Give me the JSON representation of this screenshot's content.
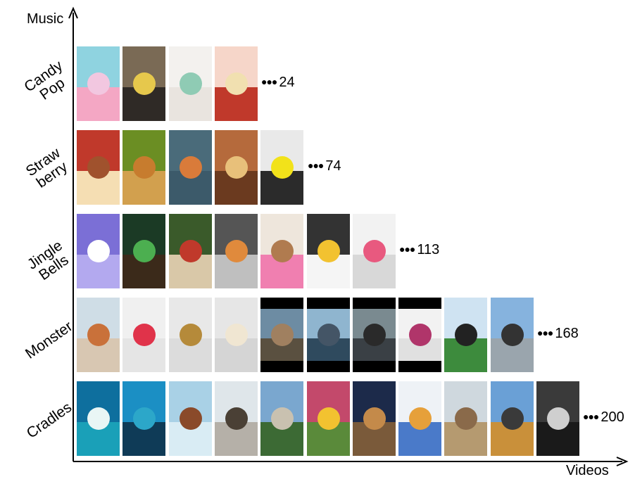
{
  "axes": {
    "y_title": "Music",
    "x_title": "Videos"
  },
  "rows": [
    {
      "label": "Candy\nPop",
      "count": "24",
      "thumbs": [
        {
          "name": "candy-hand-cookies",
          "sky": "#8fd3e0",
          "ground": "#f4a7c4",
          "obj": "#f2c7e0"
        },
        {
          "name": "candy-pan-pouring",
          "sky": "#7a6a55",
          "ground": "#2f2a26",
          "obj": "#e6c84c"
        },
        {
          "name": "candy-jars",
          "sky": "#f3f1ee",
          "ground": "#e9e4df",
          "obj": "#8fcbb4"
        },
        {
          "name": "candy-strawberry-plate",
          "sky": "#f6d6c9",
          "ground": "#c0392b",
          "obj": "#f1e0b0"
        }
      ]
    },
    {
      "label": "Straw\nberry",
      "count": "74",
      "thumbs": [
        {
          "name": "strawberry-waffle-cake",
          "sky": "#c0392b",
          "ground": "#f5deb3",
          "obj": "#a0522d"
        },
        {
          "name": "strawberry-casserole",
          "sky": "#6b8e23",
          "ground": "#d2a04e",
          "obj": "#c77c2e"
        },
        {
          "name": "strawberry-pie-crust",
          "sky": "#4a6b7a",
          "ground": "#3c5a6a",
          "obj": "#d97b3a"
        },
        {
          "name": "strawberry-donut-balls",
          "sky": "#b56a3c",
          "ground": "#6b3a1f",
          "obj": "#e8c07a"
        },
        {
          "name": "strawberry-yellow-pan",
          "sky": "#e9e9e9",
          "ground": "#2b2b2b",
          "obj": "#f2e21a"
        }
      ]
    },
    {
      "label": "Jingle\nBells",
      "count": "113",
      "thumbs": [
        {
          "name": "jingle-snowflake-craft",
          "sky": "#7b6fd6",
          "ground": "#b3a9ef",
          "obj": "#ffffff"
        },
        {
          "name": "jingle-cone-trees",
          "sky": "#1b3a25",
          "ground": "#3b2a1a",
          "obj": "#4caf50"
        },
        {
          "name": "jingle-christmas-tree-dogs",
          "sky": "#3a5a2a",
          "ground": "#d9c8a8",
          "obj": "#c0392b"
        },
        {
          "name": "jingle-cake-hand",
          "sky": "#555555",
          "ground": "#bfbfbf",
          "obj": "#e08a3c"
        },
        {
          "name": "jingle-gingerbread-house",
          "sky": "#eee6dc",
          "ground": "#f07fb0",
          "obj": "#b07b4f"
        },
        {
          "name": "jingle-tree-cake",
          "sky": "#333333",
          "ground": "#f5f5f5",
          "obj": "#f2c230"
        },
        {
          "name": "jingle-pink-ball",
          "sky": "#f2f2f2",
          "ground": "#d8d8d8",
          "obj": "#e8597f"
        }
      ]
    },
    {
      "label": "Monster",
      "count": "168",
      "thumbs": [
        {
          "name": "monster-plant-pot",
          "sky": "#cfdde6",
          "ground": "#d8c7b2",
          "obj": "#c9713a"
        },
        {
          "name": "monster-red-candle",
          "sky": "#f0f0f0",
          "ground": "#e5e5e5",
          "obj": "#e0334a"
        },
        {
          "name": "monster-bell",
          "sky": "#e8e8e8",
          "ground": "#dcdcdc",
          "obj": "#b58a3a"
        },
        {
          "name": "monster-bottle-knife",
          "sky": "#e6e6e6",
          "ground": "#d5d5d5",
          "obj": "#f0e6d2"
        },
        {
          "name": "monster-creature-rock",
          "sky": "#6d8ca3",
          "ground": "#5a5040",
          "obj": "#a08060",
          "bars": true
        },
        {
          "name": "monster-robot-sea",
          "sky": "#8fb5cf",
          "ground": "#2f4a5e",
          "obj": "#445566",
          "bars": true
        },
        {
          "name": "monster-dark-beast",
          "sky": "#7a8a90",
          "ground": "#3a4045",
          "obj": "#2a2a2a",
          "bars": true
        },
        {
          "name": "monster-pink-splash",
          "sky": "#f2f2f2",
          "ground": "#e0e0e0",
          "obj": "#b0356a",
          "bars": true
        },
        {
          "name": "monster-soccer-field",
          "sky": "#cfe3f2",
          "ground": "#3d8b3d",
          "obj": "#222222"
        },
        {
          "name": "monster-dock-jump",
          "sky": "#86b3de",
          "ground": "#9aa5ad",
          "obj": "#333333"
        }
      ]
    },
    {
      "label": "Cradles",
      "count": "200",
      "thumbs": [
        {
          "name": "cradles-wave",
          "sky": "#0e6f9e",
          "ground": "#1aa0b8",
          "obj": "#e9f6f5"
        },
        {
          "name": "cradles-ocean",
          "sky": "#1b8fc4",
          "ground": "#0f3b57",
          "obj": "#2ca7c9"
        },
        {
          "name": "cradles-ice-rock",
          "sky": "#a9d1e6",
          "ground": "#d9ecf4",
          "obj": "#8a4a2a"
        },
        {
          "name": "cradles-eiffel-tower",
          "sky": "#dfe6ea",
          "ground": "#b5b0a8",
          "obj": "#4a4035"
        },
        {
          "name": "cradles-valley",
          "sky": "#7aa7cf",
          "ground": "#3c6a34",
          "obj": "#c9c1b0"
        },
        {
          "name": "cradles-colorful-balls",
          "sky": "#c3496b",
          "ground": "#5a8a3a",
          "obj": "#f2c230"
        },
        {
          "name": "cradles-cat-tunnel",
          "sky": "#1c2a4a",
          "ground": "#7a5a3a",
          "obj": "#c48a4a"
        },
        {
          "name": "cradles-ball-pit",
          "sky": "#eef2f6",
          "ground": "#4a7ac9",
          "obj": "#e6a03a"
        },
        {
          "name": "cradles-colosseum",
          "sky": "#cfd8de",
          "ground": "#b59a70",
          "obj": "#8a6a4a"
        },
        {
          "name": "cradles-hill-runner",
          "sky": "#6aa0d6",
          "ground": "#c9903a",
          "obj": "#3a3a3a"
        },
        {
          "name": "cradles-piano-dark",
          "sky": "#3a3a3a",
          "ground": "#1a1a1a",
          "obj": "#cfcfcf"
        }
      ]
    }
  ]
}
